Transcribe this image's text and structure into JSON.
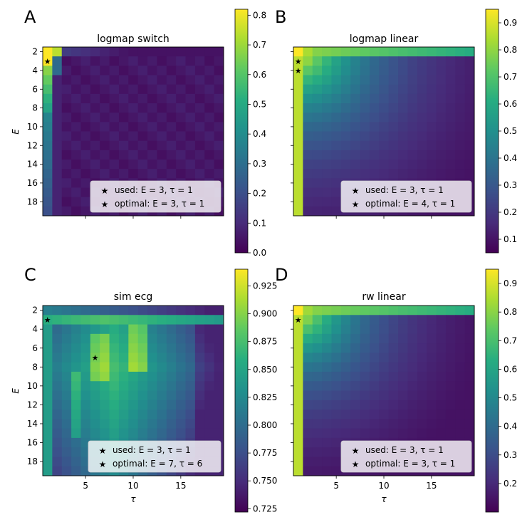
{
  "chart_data": [
    {
      "type": "heatmap",
      "panel_letter": "A",
      "title": "logmap switch",
      "xlabel": "",
      "ylabel": "E",
      "x_tick_labels": [],
      "y_tick_labels": [
        "2",
        "4",
        "6",
        "8",
        "10",
        "12",
        "14",
        "16",
        "18"
      ],
      "colorbar": {
        "range": [
          0.0,
          0.82
        ],
        "ticks": [
          "0.0",
          "0.1",
          "0.2",
          "0.3",
          "0.4",
          "0.5",
          "0.6",
          "0.7",
          "0.8"
        ],
        "tick_values": [
          0.0,
          0.1,
          0.2,
          0.3,
          0.4,
          0.5,
          0.6,
          0.7,
          0.8
        ]
      },
      "pattern": "switch",
      "legend": [
        {
          "marker_color": "#000000",
          "label": "used: E = 3, τ = 1"
        },
        {
          "marker_color": "#ff0000",
          "label": "optimal:  E = 3, τ = 1"
        }
      ],
      "stars": [
        {
          "tau": 1,
          "E": 3,
          "color": "#ff0000"
        }
      ]
    },
    {
      "type": "heatmap",
      "panel_letter": "B",
      "title": "logmap linear",
      "xlabel": "",
      "ylabel": "",
      "x_tick_labels": [],
      "y_tick_labels": [],
      "colorbar": {
        "range": [
          0.05,
          0.95
        ],
        "ticks": [
          "0.1",
          "0.2",
          "0.3",
          "0.4",
          "0.5",
          "0.6",
          "0.7",
          "0.8",
          "0.9"
        ],
        "tick_values": [
          0.1,
          0.2,
          0.3,
          0.4,
          0.5,
          0.6,
          0.7,
          0.8,
          0.9
        ]
      },
      "pattern": "decay",
      "legend": [
        {
          "marker_color": "#000000",
          "label": "used: E = 3, τ = 1"
        },
        {
          "marker_color": "#ff0000",
          "label": "optimal:  E = 4, τ = 1"
        }
      ],
      "stars": [
        {
          "tau": 1,
          "E": 3,
          "color": "#000000"
        },
        {
          "tau": 1,
          "E": 4,
          "color": "#ff0000"
        }
      ]
    },
    {
      "type": "heatmap",
      "panel_letter": "C",
      "title": "sim ecg",
      "xlabel": "τ",
      "ylabel": "E",
      "x_tick_labels": [
        "5",
        "10",
        "15"
      ],
      "x_tick_values": [
        5,
        10,
        15
      ],
      "y_tick_labels": [
        "2",
        "4",
        "6",
        "8",
        "10",
        "12",
        "14",
        "16",
        "18"
      ],
      "colorbar": {
        "range": [
          0.722,
          0.94
        ],
        "ticks": [
          "0.725",
          "0.750",
          "0.775",
          "0.800",
          "0.825",
          "0.850",
          "0.875",
          "0.900",
          "0.925"
        ],
        "tick_values": [
          0.725,
          0.75,
          0.775,
          0.8,
          0.825,
          0.85,
          0.875,
          0.9,
          0.925
        ]
      },
      "pattern": "ecg",
      "legend": [
        {
          "marker_color": "#000000",
          "label": "used: E = 3, τ = 1"
        },
        {
          "marker_color": "#ff0000",
          "label": "optimal:  E = 7, τ = 6"
        }
      ],
      "stars": [
        {
          "tau": 1,
          "E": 3,
          "color": "#000000"
        },
        {
          "tau": 6,
          "E": 7,
          "color": "#ff0000"
        }
      ]
    },
    {
      "type": "heatmap",
      "panel_letter": "D",
      "title": "rw linear",
      "xlabel": "τ",
      "ylabel": "",
      "x_tick_labels": [
        "5",
        "10",
        "15"
      ],
      "x_tick_values": [
        5,
        10,
        15
      ],
      "y_tick_labels": [],
      "colorbar": {
        "range": [
          0.1,
          0.95
        ],
        "ticks": [
          "0.2",
          "0.3",
          "0.4",
          "0.5",
          "0.6",
          "0.7",
          "0.8",
          "0.9"
        ],
        "tick_values": [
          0.2,
          0.3,
          0.4,
          0.5,
          0.6,
          0.7,
          0.8,
          0.9
        ]
      },
      "pattern": "decay2",
      "legend": [
        {
          "marker_color": "#000000",
          "label": "used: E = 3, τ = 1"
        },
        {
          "marker_color": "#ff0000",
          "label": "optimal:  E = 3, τ = 1"
        }
      ],
      "stars": [
        {
          "tau": 1,
          "E": 3,
          "color": "#ff0000"
        }
      ]
    }
  ]
}
